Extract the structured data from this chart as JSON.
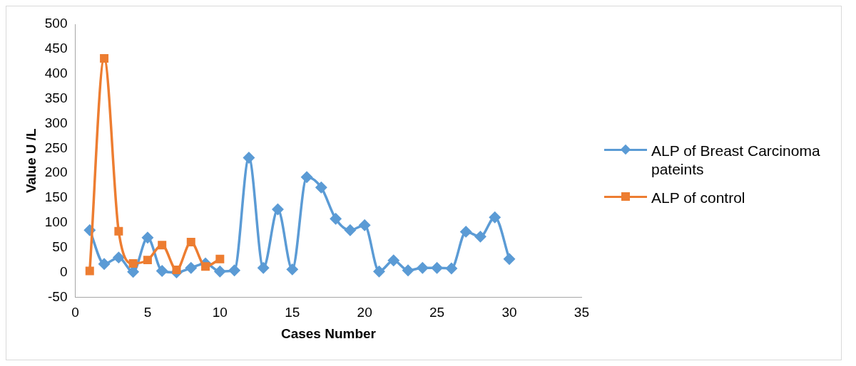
{
  "chart_data": {
    "type": "line",
    "xlabel": "Cases Number",
    "ylabel": "Value U /L",
    "xlim": [
      0,
      35
    ],
    "xticks": [
      0,
      5,
      10,
      15,
      20,
      25,
      30,
      35
    ],
    "ylim": [
      -50,
      500
    ],
    "yticks": [
      -50,
      0,
      50,
      100,
      150,
      200,
      250,
      300,
      350,
      400,
      450,
      500
    ],
    "grid": false,
    "legend": "right",
    "series": [
      {
        "name": "ALP of Breast Carcinoma pateints",
        "color": "#5b9bd5",
        "marker": "diamond",
        "x": [
          1,
          2,
          3,
          4,
          5,
          6,
          7,
          8,
          9,
          10,
          11,
          12,
          13,
          14,
          15,
          16,
          17,
          18,
          19,
          20,
          21,
          22,
          23,
          24,
          25,
          26,
          27,
          28,
          29,
          30
        ],
        "values": [
          85,
          17,
          30,
          1,
          70,
          3,
          0,
          9,
          18,
          2,
          4,
          231,
          9,
          127,
          6,
          192,
          171,
          108,
          85,
          95,
          2,
          24,
          4,
          9,
          9,
          8,
          82,
          72,
          111,
          27
        ]
      },
      {
        "name": "ALP of control",
        "color": "#ed7d31",
        "marker": "square",
        "x": [
          1,
          2,
          3,
          4,
          5,
          6,
          7,
          8,
          9,
          10
        ],
        "values": [
          3,
          431,
          83,
          18,
          25,
          55,
          5,
          61,
          12,
          27
        ]
      }
    ]
  }
}
